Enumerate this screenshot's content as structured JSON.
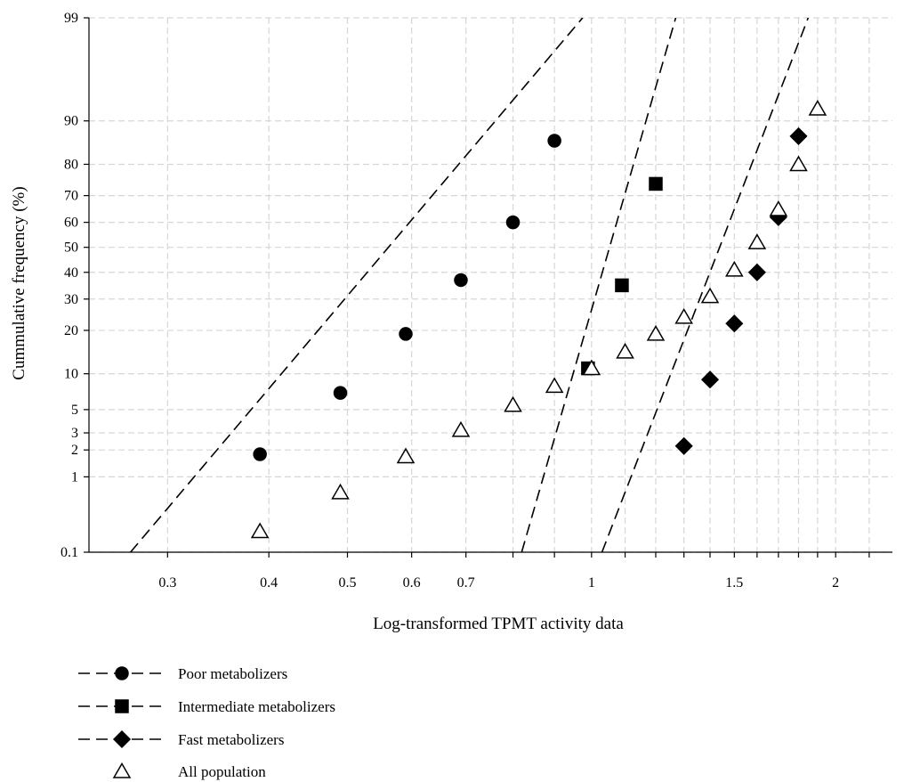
{
  "chart_data": {
    "type": "scatter",
    "title": "",
    "xlabel": "Log-transformed TPMT activity data",
    "ylabel": "Cummulative frequency (%)",
    "x_scale": "log",
    "y_scale": "probability",
    "xlim": [
      0.24,
      2.35
    ],
    "ylim": [
      0.1,
      99
    ],
    "x_ticks": [
      0.3,
      0.4,
      0.5,
      0.6,
      0.7,
      1,
      1.5,
      2
    ],
    "x_tick_labels": [
      "0.3",
      "0.4",
      "0.5",
      "0.6",
      "0.7",
      "1",
      "1.5",
      "2"
    ],
    "x_grid": [
      0.3,
      0.4,
      0.5,
      0.6,
      0.7,
      0.8,
      0.9,
      1,
      1.1,
      1.2,
      1.3,
      1.4,
      1.5,
      1.6,
      1.7,
      1.8,
      1.9,
      2,
      2.2
    ],
    "y_ticks": [
      0.1,
      1,
      2,
      3,
      5,
      10,
      20,
      30,
      40,
      50,
      60,
      70,
      80,
      90,
      99
    ],
    "y_tick_labels": [
      "0.1",
      "1",
      "2",
      "3",
      "5",
      "10",
      "20",
      "30",
      "40",
      "50",
      "60",
      "70",
      "80",
      "90",
      "99"
    ],
    "grid": true,
    "legend_position": "bottom-left",
    "series": [
      {
        "name": "Poor metabolizers",
        "marker": "circle",
        "filled": true,
        "points": [
          [
            0.39,
            1.8
          ],
          [
            0.49,
            7
          ],
          [
            0.59,
            19
          ],
          [
            0.69,
            37
          ],
          [
            0.8,
            60
          ],
          [
            0.9,
            86
          ]
        ],
        "fit_line": [
          [
            0.27,
            0.1
          ],
          [
            0.975,
            99
          ]
        ]
      },
      {
        "name": "Intermediate metabolizers",
        "marker": "square",
        "filled": true,
        "points": [
          [
            0.99,
            11
          ],
          [
            1.09,
            35
          ],
          [
            1.2,
            74
          ]
        ],
        "fit_line": [
          [
            0.82,
            0.1
          ],
          [
            1.27,
            99
          ]
        ]
      },
      {
        "name": "Fast metabolizers",
        "marker": "diamond",
        "filled": true,
        "points": [
          [
            1.3,
            2.2
          ],
          [
            1.4,
            9
          ],
          [
            1.5,
            22
          ],
          [
            1.6,
            40
          ],
          [
            1.7,
            62
          ],
          [
            1.8,
            87
          ]
        ],
        "fit_line": [
          [
            1.03,
            0.1
          ],
          [
            1.85,
            99
          ]
        ]
      },
      {
        "name": "All population",
        "marker": "triangle",
        "filled": false,
        "points": [
          [
            0.39,
            0.2
          ],
          [
            0.49,
            0.65
          ],
          [
            0.59,
            1.7
          ],
          [
            0.69,
            3.2
          ],
          [
            0.8,
            5.5
          ],
          [
            0.9,
            8
          ],
          [
            1.0,
            11
          ],
          [
            1.1,
            14.5
          ],
          [
            1.2,
            19
          ],
          [
            1.3,
            24
          ],
          [
            1.4,
            31
          ],
          [
            1.5,
            41
          ],
          [
            1.6,
            52
          ],
          [
            1.7,
            65
          ],
          [
            1.8,
            80
          ],
          [
            1.9,
            92
          ]
        ],
        "fit_line": null
      }
    ]
  }
}
